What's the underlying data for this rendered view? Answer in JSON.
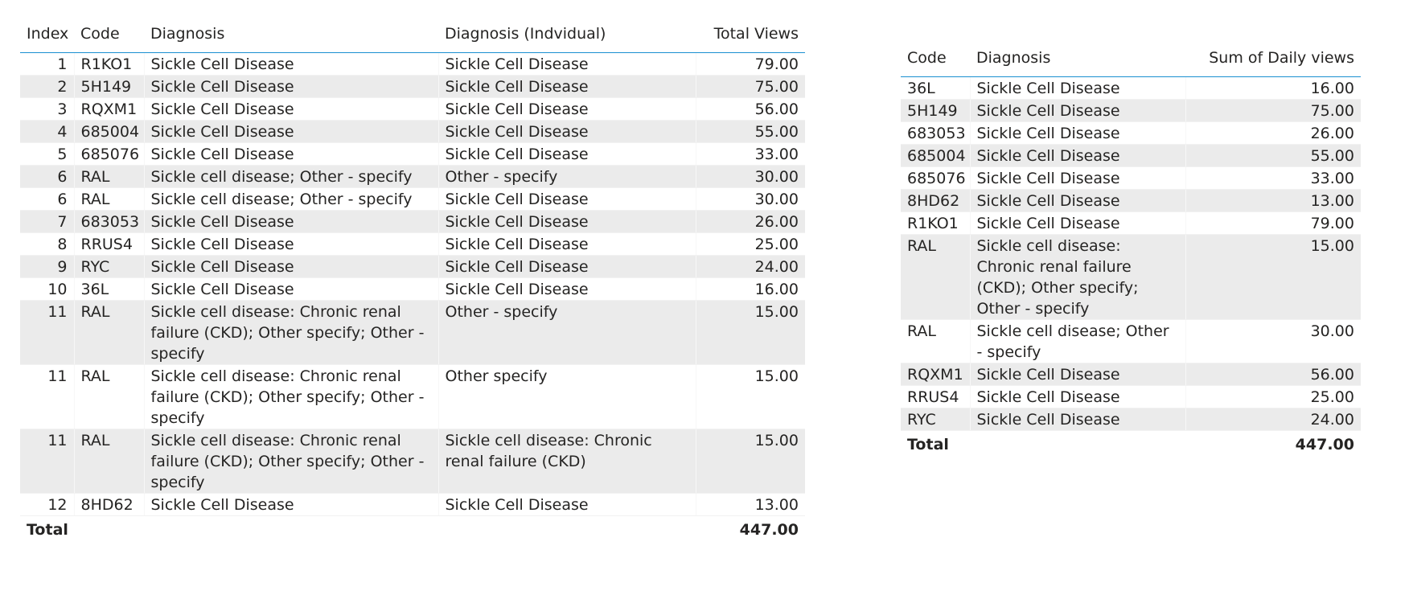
{
  "left_table": {
    "columns": {
      "index": "Index",
      "code": "Code",
      "diagnosis": "Diagnosis",
      "diagnosis_individual": "Diagnosis (Indvidual)",
      "total_views": "Total Views"
    },
    "rows": [
      {
        "index": "1",
        "code": "R1KO1",
        "diagnosis": "Sickle Cell Disease",
        "diagnosis_individual": "Sickle Cell Disease",
        "total_views": "79.00"
      },
      {
        "index": "2",
        "code": "5H149",
        "diagnosis": "Sickle Cell Disease",
        "diagnosis_individual": "Sickle Cell Disease",
        "total_views": "75.00"
      },
      {
        "index": "3",
        "code": "RQXM1",
        "diagnosis": "Sickle Cell Disease",
        "diagnosis_individual": "Sickle Cell Disease",
        "total_views": "56.00"
      },
      {
        "index": "4",
        "code": "685004",
        "diagnosis": "Sickle Cell Disease",
        "diagnosis_individual": "Sickle Cell Disease",
        "total_views": "55.00"
      },
      {
        "index": "5",
        "code": "685076",
        "diagnosis": "Sickle Cell Disease",
        "diagnosis_individual": "Sickle Cell Disease",
        "total_views": "33.00"
      },
      {
        "index": "6",
        "code": "RAL",
        "diagnosis": "Sickle cell disease; Other - specify",
        "diagnosis_individual": "Other - specify",
        "total_views": "30.00"
      },
      {
        "index": "6",
        "code": "RAL",
        "diagnosis": "Sickle cell disease; Other - specify",
        "diagnosis_individual": "Sickle Cell Disease",
        "total_views": "30.00"
      },
      {
        "index": "7",
        "code": "683053",
        "diagnosis": "Sickle Cell Disease",
        "diagnosis_individual": "Sickle Cell Disease",
        "total_views": "26.00"
      },
      {
        "index": "8",
        "code": "RRUS4",
        "diagnosis": "Sickle Cell Disease",
        "diagnosis_individual": "Sickle Cell Disease",
        "total_views": "25.00"
      },
      {
        "index": "9",
        "code": "RYC",
        "diagnosis": "Sickle Cell Disease",
        "diagnosis_individual": "Sickle Cell Disease",
        "total_views": "24.00"
      },
      {
        "index": "10",
        "code": "36L",
        "diagnosis": "Sickle Cell Disease",
        "diagnosis_individual": "Sickle Cell Disease",
        "total_views": "16.00"
      },
      {
        "index": "11",
        "code": "RAL",
        "diagnosis": "Sickle cell disease: Chronic renal failure (CKD); Other specify; Other - specify",
        "diagnosis_individual": "Other - specify",
        "total_views": "15.00"
      },
      {
        "index": "11",
        "code": "RAL",
        "diagnosis": "Sickle cell disease: Chronic renal failure (CKD); Other specify; Other - specify",
        "diagnosis_individual": "Other specify",
        "total_views": "15.00"
      },
      {
        "index": "11",
        "code": "RAL",
        "diagnosis": "Sickle cell disease: Chronic renal failure (CKD); Other specify; Other - specify",
        "diagnosis_individual": "Sickle cell disease: Chronic renal failure (CKD)",
        "total_views": "15.00"
      },
      {
        "index": "12",
        "code": "8HD62",
        "diagnosis": "Sickle Cell Disease",
        "diagnosis_individual": "Sickle Cell Disease",
        "total_views": "13.00"
      }
    ],
    "total_label": "Total",
    "total_value": "447.00"
  },
  "right_table": {
    "columns": {
      "code": "Code",
      "diagnosis": "Diagnosis",
      "sum_daily_views": "Sum of Daily views"
    },
    "rows": [
      {
        "code": "36L",
        "diagnosis": "Sickle Cell Disease",
        "sum_daily_views": "16.00"
      },
      {
        "code": "5H149",
        "diagnosis": "Sickle Cell Disease",
        "sum_daily_views": "75.00"
      },
      {
        "code": "683053",
        "diagnosis": "Sickle Cell Disease",
        "sum_daily_views": "26.00"
      },
      {
        "code": "685004",
        "diagnosis": "Sickle Cell Disease",
        "sum_daily_views": "55.00"
      },
      {
        "code": "685076",
        "diagnosis": "Sickle Cell Disease",
        "sum_daily_views": "33.00"
      },
      {
        "code": "8HD62",
        "diagnosis": "Sickle Cell Disease",
        "sum_daily_views": "13.00"
      },
      {
        "code": "R1KO1",
        "diagnosis": "Sickle Cell Disease",
        "sum_daily_views": "79.00"
      },
      {
        "code": "RAL",
        "diagnosis": "Sickle cell disease: Chronic renal failure (CKD); Other specify; Other - specify",
        "sum_daily_views": "15.00"
      },
      {
        "code": "RAL",
        "diagnosis": "Sickle cell disease; Other - specify",
        "sum_daily_views": "30.00"
      },
      {
        "code": "RQXM1",
        "diagnosis": "Sickle Cell Disease",
        "sum_daily_views": "56.00"
      },
      {
        "code": "RRUS4",
        "diagnosis": "Sickle Cell Disease",
        "sum_daily_views": "25.00"
      },
      {
        "code": "RYC",
        "diagnosis": "Sickle Cell Disease",
        "sum_daily_views": "24.00"
      }
    ],
    "total_label": "Total",
    "total_value": "447.00"
  },
  "colors": {
    "header_rule": "#1a8fd1",
    "band_row": "#ebebeb"
  }
}
